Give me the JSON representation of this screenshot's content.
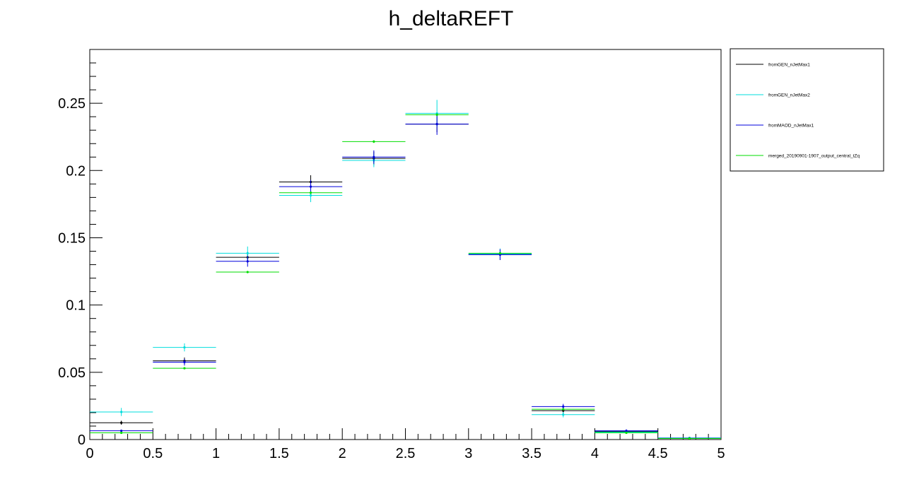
{
  "chart_data": {
    "type": "scatter",
    "title": "h_deltaREFT",
    "xlabel": "",
    "ylabel": "",
    "xlim": [
      0,
      5
    ],
    "ylim": [
      0,
      0.29
    ],
    "bin_width": 0.5,
    "x_major_ticks": [
      0,
      0.5,
      1,
      1.5,
      2,
      2.5,
      3,
      3.5,
      4,
      4.5,
      5
    ],
    "x_tick_labels": [
      "0",
      "0.5",
      "1",
      "1.5",
      "2",
      "2.5",
      "3",
      "3.5",
      "4",
      "4.5",
      "5"
    ],
    "y_major_ticks": [
      0,
      0.05,
      0.1,
      0.15,
      0.2,
      0.25
    ],
    "y_tick_labels": [
      "0",
      "0.05",
      "0.1",
      "0.15",
      "0.2",
      "0.25"
    ],
    "grid": false,
    "legend_position": "top-right-outside",
    "x": [
      0.25,
      0.75,
      1.25,
      1.75,
      2.25,
      2.75,
      3.25,
      3.75,
      4.25,
      4.75
    ],
    "series": [
      {
        "name": "fromGEN_nJetMax1",
        "color": "#000000",
        "values": [
          0.0125,
          0.0585,
          0.1355,
          0.1915,
          0.209,
          0.2345,
          0.1375,
          0.0215,
          0.006,
          0.0008
        ],
        "errors": [
          0.0015,
          0.0025,
          0.004,
          0.005,
          0.005,
          0.006,
          0.004,
          0.002,
          0.001,
          0.0003
        ]
      },
      {
        "name": "fromGEN_nJetMax2",
        "color": "#00dddd",
        "values": [
          0.0205,
          0.0685,
          0.1385,
          0.1815,
          0.2075,
          0.2425,
          0.138,
          0.0185,
          0.0055,
          0.0012
        ],
        "errors": [
          0.003,
          0.003,
          0.005,
          0.005,
          0.005,
          0.01,
          0.004,
          0.002,
          0.001,
          0.0005
        ]
      },
      {
        "name": "fromMAOD_nJetMax1",
        "color": "#0000dd",
        "values": [
          0.0065,
          0.0575,
          0.1325,
          0.188,
          0.21,
          0.2345,
          0.1375,
          0.0245,
          0.0065,
          0.001
        ],
        "errors": [
          0.0008,
          0.0025,
          0.004,
          0.005,
          0.005,
          0.008,
          0.004,
          0.002,
          0.001,
          0.0004
        ]
      },
      {
        "name": "merged_20190901-1907_output_central_tZq",
        "color": "#00dd00",
        "values": [
          0.005,
          0.053,
          0.1245,
          0.1835,
          0.2215,
          0.2415,
          0.1385,
          0.0225,
          0.005,
          0.0008
        ],
        "errors": [
          0.0003,
          0.0005,
          0.0008,
          0.001,
          0.001,
          0.001,
          0.0008,
          0.0004,
          0.0002,
          0.0001
        ]
      }
    ]
  }
}
